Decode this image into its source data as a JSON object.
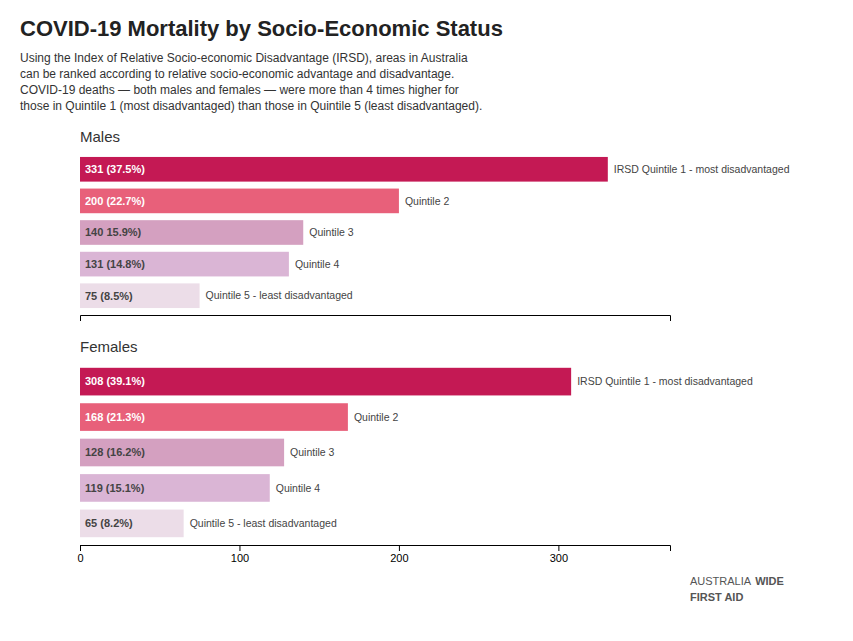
{
  "chart_data": [
    {
      "type": "bar",
      "orientation": "horizontal",
      "title": "COVID-19 Mortality by Socio-Economic Status",
      "subtitle": "Using the Index of Relative Socio-economic Disadvantage (IRSD), areas in Australia\ncan be ranked according to relative socio-economic advantage and disadvantage.\nCOVID-19 deaths — both males and females — were more than 4 times higher for\nthose in Quintile 1 (most disadvantaged) than those in Quintile 5 (least disadvantaged).",
      "ylabel": "Males",
      "categories": [
        "IRSD Quintile 1 - most disadvantaged",
        "Quintile 2",
        "Quintile 3",
        "Quintile 4",
        "Quintile 5 - least disadvantaged"
      ],
      "values": [
        331,
        200,
        140,
        131,
        75
      ],
      "value_labels": [
        "331 (37.5%)",
        "200 (22.7%)",
        "140 15.9%)",
        "131 (14.8%)",
        "75 (8.5%)"
      ],
      "colors": [
        "#c41954",
        "#e8607a",
        "#d4a0c0",
        "#dab5d5",
        "#ecdde8"
      ],
      "data_labels": true,
      "xlim": [
        0,
        370
      ],
      "tick_labels": false,
      "grid": false
    },
    {
      "type": "bar",
      "orientation": "horizontal",
      "ylabel": "Females",
      "categories": [
        "IRSD Quintile 1 - most disadvantaged",
        "Quintile 2",
        "Quintile 3",
        "Quintile 4",
        "Quintile 5 - least disadvantaged"
      ],
      "values": [
        308,
        168,
        128,
        119,
        65
      ],
      "value_labels": [
        "308 (39.1%)",
        "168 (21.3%)",
        "128 (16.2%)",
        "119 (15.1%)",
        "65 (8.2%)"
      ],
      "colors": [
        "#c41954",
        "#e8607a",
        "#d4a0c0",
        "#dab5d5",
        "#ecdde8"
      ],
      "data_labels": true,
      "xlim": [
        0,
        370
      ],
      "xticks": [
        0,
        100,
        200,
        300
      ],
      "tick_labels": "x",
      "grid": false,
      "annotations": [
        "AUSTRALIA",
        "WIDE",
        "FIRST AID"
      ]
    }
  ]
}
